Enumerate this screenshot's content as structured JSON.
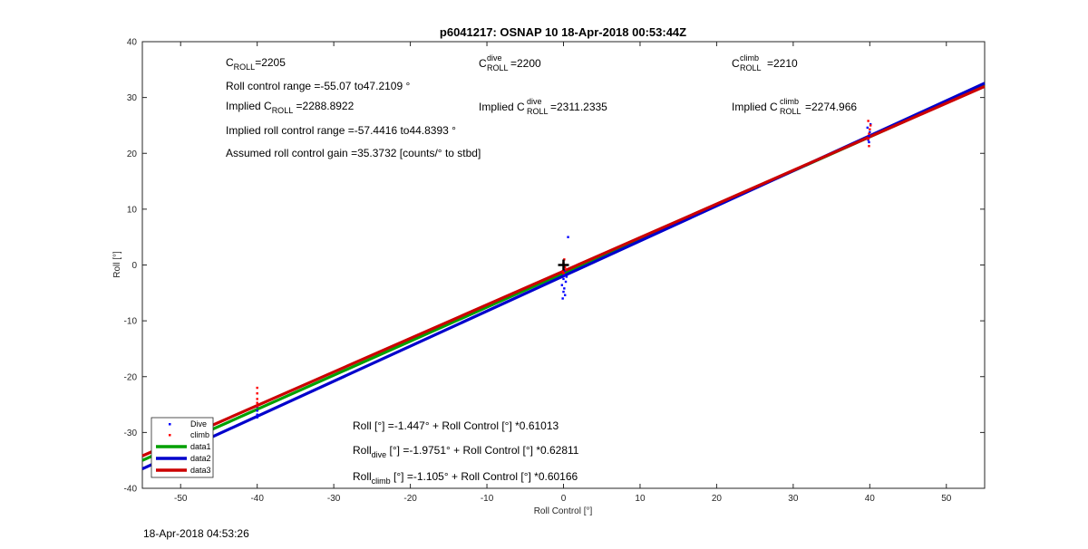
{
  "chart_data": {
    "type": "scatter",
    "title": "p6041217: OSNAP 10 18-Apr-2018 00:53:44Z",
    "xlabel": "Roll Control [°]",
    "ylabel": "Roll [°]",
    "xlim": [
      -55,
      55
    ],
    "ylim": [
      -40,
      40
    ],
    "xticks": [
      -50,
      -40,
      -30,
      -20,
      -10,
      0,
      10,
      20,
      30,
      40,
      50
    ],
    "yticks": [
      -40,
      -30,
      -20,
      -10,
      0,
      10,
      20,
      30,
      40
    ],
    "grid": false,
    "legend_position": "bottom-left",
    "series": [
      {
        "name": "Dive",
        "kind": "points",
        "color": "#0000ff",
        "points": [
          [
            -40,
            -25.4
          ],
          [
            -40,
            -26.1
          ],
          [
            -40,
            -26.8
          ],
          [
            -40,
            -27.3
          ],
          [
            0.2,
            -1.0
          ],
          [
            0.1,
            -1.8
          ],
          [
            0.0,
            -2.5
          ],
          [
            0.3,
            -3.0
          ],
          [
            -0.2,
            -3.6
          ],
          [
            0.1,
            -4.2
          ],
          [
            0.0,
            -4.8
          ],
          [
            0.2,
            -5.4
          ],
          [
            -0.1,
            -6.0
          ],
          [
            0.4,
            -2.1
          ],
          [
            0.6,
            5.0
          ],
          [
            39.8,
            22.4
          ],
          [
            39.9,
            23.1
          ],
          [
            40.0,
            23.8
          ],
          [
            39.7,
            24.6
          ],
          [
            40.1,
            25.2
          ],
          [
            39.9,
            22.0
          ]
        ]
      },
      {
        "name": "climb",
        "kind": "points",
        "color": "#ff0000",
        "points": [
          [
            -40,
            -22.0
          ],
          [
            -40,
            -23.0
          ],
          [
            -40,
            -24.0
          ],
          [
            -40,
            -24.7
          ],
          [
            -40,
            -25.3
          ],
          [
            0.1,
            1.0
          ],
          [
            0.0,
            0.3
          ],
          [
            0.2,
            -0.4
          ],
          [
            -0.1,
            -1.1
          ],
          [
            0.3,
            -0.8
          ],
          [
            0.0,
            -1.5
          ],
          [
            39.8,
            22.6
          ],
          [
            39.9,
            23.5
          ],
          [
            40.0,
            24.3
          ],
          [
            40.1,
            25.0
          ],
          [
            39.8,
            25.8
          ],
          [
            39.9,
            21.3
          ]
        ]
      },
      {
        "name": "data1",
        "kind": "line",
        "color": "#00a000",
        "intercept": -1.447,
        "slope": 0.61013
      },
      {
        "name": "data2",
        "kind": "line",
        "color": "#0000cc",
        "intercept": -1.9751,
        "slope": 0.62811
      },
      {
        "name": "data3",
        "kind": "line",
        "color": "#cc0000",
        "intercept": -1.105,
        "slope": 0.60166
      }
    ],
    "center_marker": {
      "x": 0,
      "y": 0
    },
    "annotations": {
      "c_roll": {
        "main": "C",
        "sub": "ROLL",
        "rest": "=2205"
      },
      "roll_range": "Roll control range =-55.07 to47.2109 °",
      "implied_c_roll": {
        "prefix": "Implied C",
        "sub": "ROLL",
        "rest": " =2288.8922"
      },
      "implied_range": "Implied roll control range =-57.4416 to44.8393 °",
      "gain": "Assumed roll control gain =35.3732 [counts/° to stbd]",
      "c_roll_dive": {
        "main": "C",
        "sup": "dive",
        "sub": "ROLL",
        "rest": " =2200"
      },
      "implied_c_roll_dive": {
        "prefix": "Implied C",
        "sup": "dive",
        "sub": "ROLL",
        "rest": " =2311.2335"
      },
      "c_roll_climb": {
        "main": "C",
        "sup": "climb",
        "sub": "ROLL",
        "rest": " =2210"
      },
      "implied_c_roll_climb": {
        "prefix": "Implied C",
        "sup": "climb",
        "sub": "ROLL",
        "rest": " =2274.966"
      },
      "fit_all": "Roll [°] =-1.447° + Roll Control [°] *0.61013",
      "fit_dive": {
        "prefix": "Roll",
        "sub": "dive",
        "rest": " [°] =-1.9751° + Roll Control [°] *0.62811"
      },
      "fit_climb": {
        "prefix": "Roll",
        "sub": "climb",
        "rest": " [°] =-1.105° + Roll Control [°] *0.60166"
      }
    }
  },
  "footer": {
    "timestamp": "18-Apr-2018 04:53:26"
  }
}
